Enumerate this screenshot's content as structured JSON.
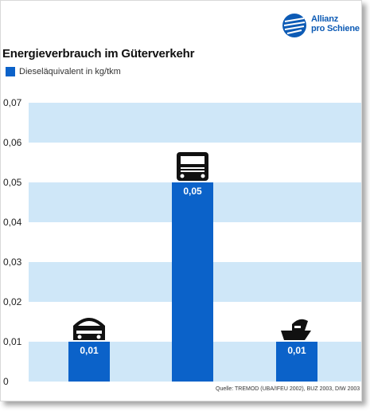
{
  "logo": {
    "line1": "Allianz",
    "line2": "pro Schiene"
  },
  "colors": {
    "brand": "#0d5bb5",
    "bar": "#0b62c9",
    "band": "#cfe7f8"
  },
  "chart_data": {
    "type": "bar",
    "title": "Energieverbrauch im Güterverkehr",
    "series": [
      {
        "name": "Dieseläquivalent in kg/tkm",
        "values": [
          0.01,
          0.05,
          0.01
        ]
      }
    ],
    "categories": [
      "",
      "",
      ""
    ],
    "category_icons": [
      "train-icon",
      "truck-icon",
      "ship-icon"
    ],
    "data_labels": [
      "0,01",
      "0,05",
      "0,01"
    ],
    "ylim": [
      0,
      0.07
    ],
    "yticks": [
      "0",
      "0,01",
      "0,02",
      "0,03",
      "0,04",
      "0,05",
      "0,06",
      "0,07"
    ],
    "grid": "alternating horizontal bands",
    "legend": "top-left",
    "source": "Quelle: TREMOD (UBA/IFEU 2002), BUZ 2003, DIW 2003"
  }
}
